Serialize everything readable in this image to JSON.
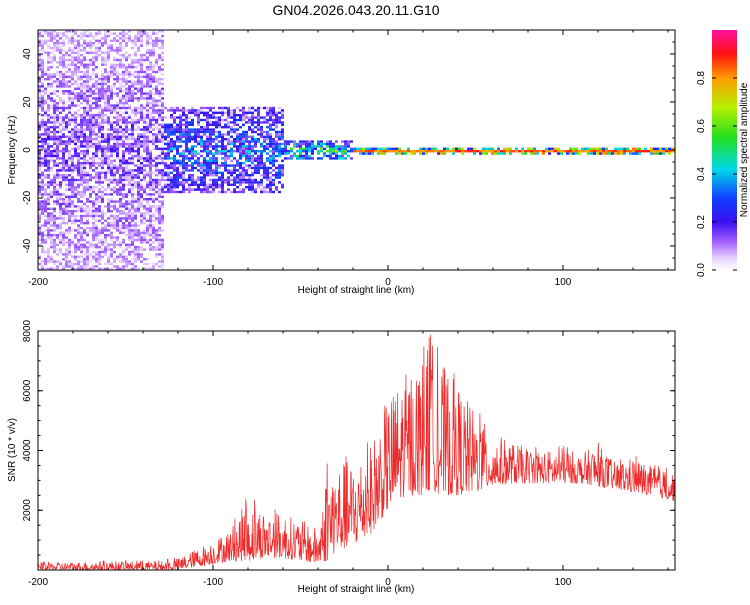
{
  "title": "GN04.2026.043.20.11.G10",
  "colors": {
    "snr_line": "#ee2a2a",
    "background": "#ffffff",
    "axis": "#000000"
  },
  "chart_data": [
    {
      "type": "heatmap",
      "title": "GN04.2026.043.20.11.G10",
      "xlabel": "Height of straight line (km)",
      "ylabel": "Frequency (Hz)",
      "xlim": [
        -200,
        164
      ],
      "ylim": [
        -50,
        50
      ],
      "xticks": [
        -200,
        -100,
        0,
        100
      ],
      "yticks": [
        -40,
        -20,
        0,
        20,
        40
      ],
      "colorbar": {
        "label": "Normalized spectral amplitude",
        "range": [
          0,
          1
        ],
        "ticks": [
          "0.0",
          "0.2",
          "0.4",
          "0.6",
          "0.8"
        ],
        "colormap": "rainbow (violet-blue-cyan-green-yellow-red-magenta)"
      },
      "regions": [
        {
          "x_range": [
            -200,
            -128
          ],
          "freq_range": [
            -50,
            50
          ],
          "amplitude": 0.12,
          "description": "broadband low-amplitude noise"
        },
        {
          "x_range": [
            -128,
            -60
          ],
          "freq_range": [
            -18,
            18
          ],
          "amplitude": 0.25,
          "description": "noise tapering toward center"
        },
        {
          "x_range": [
            -60,
            -20
          ],
          "freq_range": [
            -4,
            4
          ],
          "amplitude": 0.4,
          "description": "narrowing signal band"
        },
        {
          "x_range": [
            -20,
            164
          ],
          "freq_range": [
            -1.5,
            1.5
          ],
          "amplitude": 0.9,
          "description": "strong narrow tone near 0 Hz"
        }
      ]
    },
    {
      "type": "line",
      "xlabel": "Height of straight line (km)",
      "ylabel": "SNR (10 * v/v)",
      "xlim": [
        -200,
        164
      ],
      "ylim": [
        0,
        8000
      ],
      "xticks": [
        -200,
        -100,
        0,
        100
      ],
      "yticks": [
        2000,
        4000,
        6000,
        8000
      ],
      "envelope": {
        "x": [
          -200,
          -160,
          -130,
          -120,
          -110,
          -100,
          -90,
          -80,
          -70,
          -60,
          -50,
          -40,
          -35,
          -30,
          -20,
          -10,
          0,
          10,
          20,
          25,
          30,
          40,
          50,
          60,
          70,
          80,
          90,
          100,
          110,
          120,
          130,
          140,
          150,
          164
        ],
        "low": [
          0,
          0,
          0,
          0,
          100,
          200,
          300,
          300,
          400,
          400,
          300,
          200,
          300,
          600,
          800,
          1200,
          2000,
          2500,
          2500,
          2700,
          2500,
          2500,
          2600,
          2800,
          2900,
          2900,
          2900,
          2900,
          2900,
          2800,
          2700,
          2600,
          2500,
          2300
        ],
        "high": [
          250,
          300,
          300,
          400,
          700,
          1000,
          1400,
          2400,
          2000,
          1900,
          1700,
          1400,
          3400,
          3600,
          3700,
          4200,
          5800,
          6600,
          7200,
          7700,
          7000,
          6200,
          5300,
          4600,
          4300,
          4100,
          4000,
          4100,
          3900,
          4200,
          3600,
          3800,
          3500,
          3300
        ]
      }
    }
  ]
}
